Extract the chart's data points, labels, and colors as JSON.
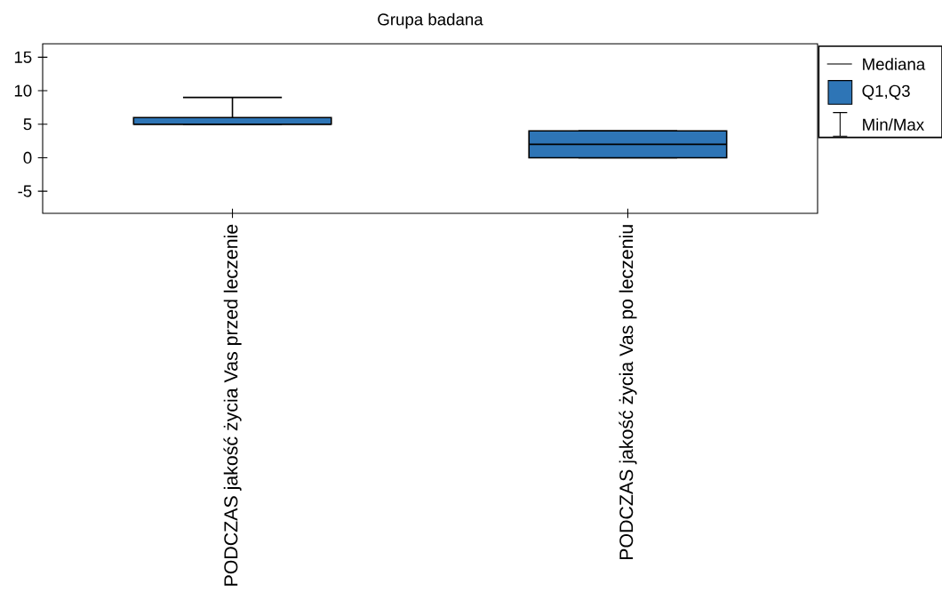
{
  "chart_data": {
    "type": "box",
    "title": "Grupa badana",
    "categories": [
      "PODCZAS  jakość życia Vas przed leczenie",
      "PODCZAS jakość życia Vas po leczeniu"
    ],
    "boxes": [
      {
        "low": 5,
        "q1": 5,
        "median": 5,
        "q3": 6,
        "high": 9
      },
      {
        "low": 0,
        "q1": 0,
        "median": 2,
        "q3": 4,
        "high": 4
      }
    ],
    "color": "#2e75b6",
    "ylim": [
      -8.3,
      17
    ],
    "yticks": [
      -5,
      0,
      5,
      10,
      15
    ],
    "grid": false,
    "annotations": [
      "Mediana",
      "Q1,Q3",
      "Min/Max"
    ]
  }
}
